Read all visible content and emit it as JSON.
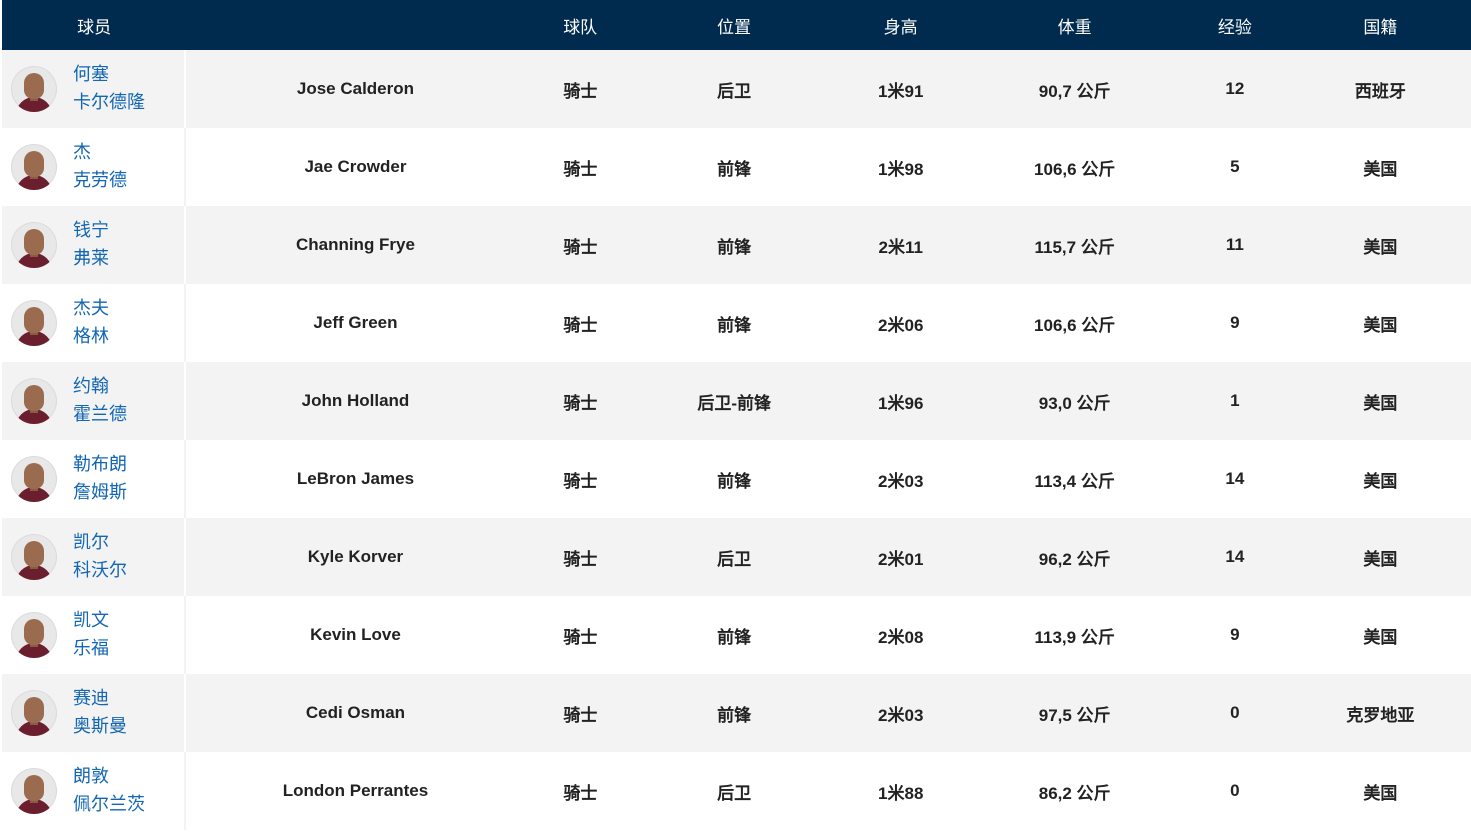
{
  "columns": {
    "player": "球员",
    "team": "球队",
    "position": "位置",
    "height": "身高",
    "weight": "体重",
    "experience": "经验",
    "nationality": "国籍"
  },
  "rows": [
    {
      "cn_first": "何塞",
      "cn_last": "卡尔德隆",
      "name": "Jose Calderon",
      "team": "骑士",
      "position": "后卫",
      "height": "1米91",
      "weight": "90,7 公斤",
      "experience": "12",
      "nationality": "西班牙"
    },
    {
      "cn_first": "杰",
      "cn_last": "克劳德",
      "name": "Jae Crowder",
      "team": "骑士",
      "position": "前锋",
      "height": "1米98",
      "weight": "106,6 公斤",
      "experience": "5",
      "nationality": "美国"
    },
    {
      "cn_first": "钱宁",
      "cn_last": "弗莱",
      "name": "Channing Frye",
      "team": "骑士",
      "position": "前锋",
      "height": "2米11",
      "weight": "115,7 公斤",
      "experience": "11",
      "nationality": "美国"
    },
    {
      "cn_first": "杰夫",
      "cn_last": "格林",
      "name": "Jeff Green",
      "team": "骑士",
      "position": "前锋",
      "height": "2米06",
      "weight": "106,6 公斤",
      "experience": "9",
      "nationality": "美国"
    },
    {
      "cn_first": "约翰",
      "cn_last": "霍兰德",
      "name": "John Holland",
      "team": "骑士",
      "position": "后卫-前锋",
      "height": "1米96",
      "weight": "93,0 公斤",
      "experience": "1",
      "nationality": "美国"
    },
    {
      "cn_first": "勒布朗",
      "cn_last": "詹姆斯",
      "name": "LeBron James",
      "team": "骑士",
      "position": "前锋",
      "height": "2米03",
      "weight": "113,4 公斤",
      "experience": "14",
      "nationality": "美国"
    },
    {
      "cn_first": "凯尔",
      "cn_last": "科沃尔",
      "name": "Kyle Korver",
      "team": "骑士",
      "position": "后卫",
      "height": "2米01",
      "weight": "96,2 公斤",
      "experience": "14",
      "nationality": "美国"
    },
    {
      "cn_first": "凯文",
      "cn_last": "乐福",
      "name": "Kevin Love",
      "team": "骑士",
      "position": "前锋",
      "height": "2米08",
      "weight": "113,9 公斤",
      "experience": "9",
      "nationality": "美国"
    },
    {
      "cn_first": "赛迪",
      "cn_last": "奥斯曼",
      "name": "Cedi Osman",
      "team": "骑士",
      "position": "前锋",
      "height": "2米03",
      "weight": "97,5 公斤",
      "experience": "0",
      "nationality": "克罗地亚"
    },
    {
      "cn_first": "朗敦",
      "cn_last": "佩尔兰茨",
      "name": "London Perrantes",
      "team": "骑士",
      "position": "后卫",
      "height": "1米88",
      "weight": "86,2 公斤",
      "experience": "0",
      "nationality": "美国"
    }
  ],
  "colors": {
    "header_bg": "#002b4e",
    "link": "#1366b3",
    "row_alt": "#f3f3f3"
  }
}
